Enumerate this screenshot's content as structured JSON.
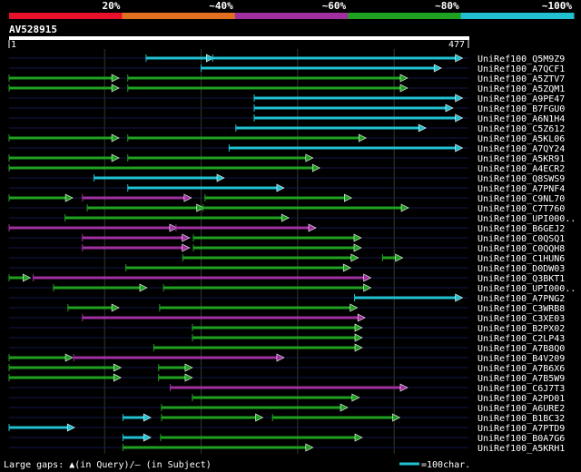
{
  "query": {
    "name": "AV528915",
    "start": "1",
    "end": "477",
    "length": 477
  },
  "identity_legend": [
    {
      "label": "20%",
      "color": "#e8102a"
    },
    {
      "label": "~40%",
      "color": "#e07020"
    },
    {
      "label": "~60%",
      "color": "#a030a0"
    },
    {
      "label": "~80%",
      "color": "#20a020"
    },
    {
      "label": "~100%",
      "color": "#20c0d0"
    }
  ],
  "footer": {
    "gaps_prefix": "Large gaps: ",
    "gaps_query": "(in Query)/",
    "gaps_subject": " (in Subject)",
    "scale_label": "=100char.",
    "query_marker": "▲",
    "subject_marker": "—"
  },
  "chart_data": {
    "type": "alignment",
    "x_unit": "query residue",
    "xlim": [
      1,
      477
    ],
    "legend": [
      "20%",
      "~40%",
      "~60%",
      "~80%",
      "~100%"
    ],
    "hits": [
      {
        "name": "UniRef100_Q5M9Z9",
        "segments": [
          [
            143,
            212,
            "~100%"
          ],
          [
            212,
            470,
            "~100%"
          ]
        ]
      },
      {
        "name": "UniRef100_A7QCF1",
        "segments": [
          [
            200,
            448,
            "~100%"
          ]
        ]
      },
      {
        "name": "UniRef100_A5ZTV7",
        "segments": [
          [
            1,
            114,
            "~80%"
          ],
          [
            124,
            413,
            "~80%"
          ]
        ]
      },
      {
        "name": "UniRef100_A5ZQM1",
        "segments": [
          [
            1,
            114,
            "~80%"
          ],
          [
            124,
            413,
            "~80%"
          ]
        ]
      },
      {
        "name": "UniRef100_A9PE47",
        "segments": [
          [
            255,
            470,
            "~100%"
          ]
        ]
      },
      {
        "name": "UniRef100_B7FGU0",
        "segments": [
          [
            255,
            460,
            "~100%"
          ]
        ]
      },
      {
        "name": "UniRef100_A6N1H4",
        "segments": [
          [
            255,
            470,
            "~100%"
          ]
        ]
      },
      {
        "name": "UniRef100_C5Z612",
        "segments": [
          [
            236,
            432,
            "~100%"
          ]
        ]
      },
      {
        "name": "UniRef100_A5KL06",
        "segments": [
          [
            1,
            114,
            "~80%"
          ],
          [
            124,
            370,
            "~80%"
          ]
        ]
      },
      {
        "name": "UniRef100_A7QY24",
        "segments": [
          [
            229,
            470,
            "~100%"
          ]
        ]
      },
      {
        "name": "UniRef100_A5KR91",
        "segments": [
          [
            1,
            114,
            "~80%"
          ],
          [
            124,
            315,
            "~80%"
          ]
        ]
      },
      {
        "name": "UniRef100_A4ECR2",
        "segments": [
          [
            1,
            322,
            "~80%"
          ]
        ]
      },
      {
        "name": "UniRef100_Q8SWS9",
        "segments": [
          [
            89,
            223,
            "~100%"
          ]
        ]
      },
      {
        "name": "UniRef100_A7PNF4",
        "segments": [
          [
            124,
            285,
            "~100%"
          ]
        ]
      },
      {
        "name": "UniRef100_C9NL70",
        "segments": [
          [
            1,
            66,
            "~80%"
          ],
          [
            77,
            189,
            "~60%"
          ],
          [
            204,
            355,
            "~80%"
          ]
        ]
      },
      {
        "name": "UniRef100_C7T760",
        "segments": [
          [
            82,
            202,
            "~80%"
          ],
          [
            202,
            414,
            "~80%"
          ]
        ]
      },
      {
        "name": "UniRef100_UPI000..",
        "segments": [
          [
            59,
            290,
            "~80%"
          ]
        ]
      },
      {
        "name": "UniRef100_B6GEJ2",
        "segments": [
          [
            1,
            174,
            "~60%"
          ],
          [
            174,
            318,
            "~60%"
          ]
        ]
      },
      {
        "name": "UniRef100_C0QSQ1",
        "segments": [
          [
            77,
            187,
            "~60%"
          ],
          [
            192,
            365,
            "~80%"
          ]
        ]
      },
      {
        "name": "UniRef100_C0QQH8",
        "segments": [
          [
            77,
            187,
            "~60%"
          ],
          [
            192,
            365,
            "~80%"
          ]
        ]
      },
      {
        "name": "UniRef100_C1HUN6",
        "segments": [
          [
            181,
            362,
            "~80%"
          ],
          [
            388,
            408,
            "~80%"
          ]
        ]
      },
      {
        "name": "UniRef100_D0DW03",
        "segments": [
          [
            122,
            354,
            "~80%"
          ]
        ]
      },
      {
        "name": "UniRef100_Q3BKT1",
        "segments": [
          [
            1,
            22,
            "~80%"
          ],
          [
            26,
            375,
            "~60%"
          ]
        ]
      },
      {
        "name": "UniRef100_UPI000..",
        "segments": [
          [
            47,
            143,
            "~80%"
          ],
          [
            161,
            375,
            "~80%"
          ]
        ]
      },
      {
        "name": "UniRef100_A7PNG2",
        "segments": [
          [
            359,
            470,
            "~100%"
          ]
        ]
      },
      {
        "name": "UniRef100_C3WRB8",
        "segments": [
          [
            62,
            114,
            "~80%"
          ],
          [
            157,
            361,
            "~80%"
          ]
        ]
      },
      {
        "name": "UniRef100_C3XE03",
        "segments": [
          [
            77,
            369,
            "~60%"
          ]
        ]
      },
      {
        "name": "UniRef100_B2PX02",
        "segments": [
          [
            191,
            366,
            "~80%"
          ]
        ]
      },
      {
        "name": "UniRef100_C2LP43",
        "segments": [
          [
            191,
            366,
            "~80%"
          ]
        ]
      },
      {
        "name": "UniRef100_A7B8Q0",
        "segments": [
          [
            151,
            366,
            "~80%"
          ]
        ]
      },
      {
        "name": "UniRef100_B4V209",
        "segments": [
          [
            1,
            66,
            "~80%"
          ],
          [
            68,
            285,
            "~60%"
          ]
        ]
      },
      {
        "name": "UniRef100_A7B6X6",
        "segments": [
          [
            1,
            116,
            "~80%"
          ],
          [
            156,
            190,
            "~80%"
          ]
        ]
      },
      {
        "name": "UniRef100_A7B5W9",
        "segments": [
          [
            1,
            116,
            "~80%"
          ],
          [
            156,
            190,
            "~80%"
          ]
        ]
      },
      {
        "name": "UniRef100_C6J7T3",
        "segments": [
          [
            168,
            413,
            "~60%"
          ]
        ]
      },
      {
        "name": "UniRef100_A2PD01",
        "segments": [
          [
            191,
            363,
            "~80%"
          ]
        ]
      },
      {
        "name": "UniRef100_A6URE2",
        "segments": [
          [
            159,
            351,
            "~80%"
          ]
        ]
      },
      {
        "name": "UniRef100_B1BC32",
        "segments": [
          [
            119,
            147,
            "~100%"
          ],
          [
            159,
            263,
            "~80%"
          ],
          [
            274,
            405,
            "~80%"
          ]
        ]
      },
      {
        "name": "UniRef100_A7PTD9",
        "segments": [
          [
            1,
            68,
            "~100%"
          ]
        ]
      },
      {
        "name": "UniRef100_B0A7G6",
        "segments": [
          [
            119,
            147,
            "~100%"
          ],
          [
            158,
            366,
            "~80%"
          ]
        ]
      },
      {
        "name": "UniRef100_A5KRH1",
        "segments": [
          [
            119,
            315,
            "~80%"
          ]
        ]
      }
    ]
  }
}
